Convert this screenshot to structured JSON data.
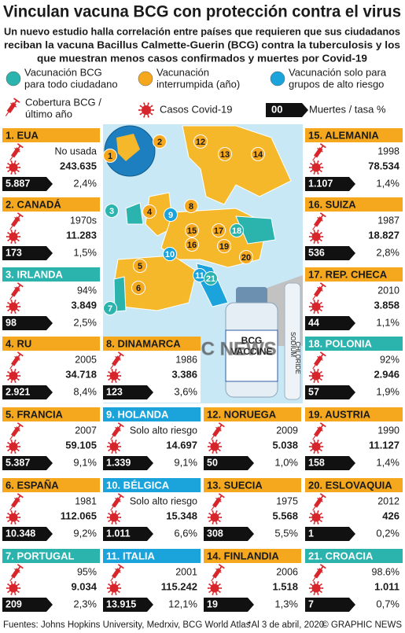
{
  "header": {
    "title": "Vinculan vacuna BCG con protección contra el virus",
    "subtitle": [
      "Un nuevo estudio halla correlación entre países que requieren que sus ciudadanos",
      "reciban la vacuna Bacillus Calmette-Guerin (BCG) contra la tuberculosis y los",
      "que muestran menos casos confirmados y muertes por Covid-19"
    ]
  },
  "legend": {
    "groups": [
      {
        "text": [
          "Vacunación BCG",
          "para todo ciudadano"
        ],
        "color": "#2bb3ad"
      },
      {
        "text": [
          "Vacunación",
          "interrumpida (año)"
        ],
        "color": "#f5a81e"
      },
      {
        "text": [
          "Vacunación solo para",
          "grupos de alto riesgo"
        ],
        "color": "#1ba3dc"
      }
    ],
    "coverage": [
      "Cobertura BCG /",
      "último año"
    ],
    "cases": "Casos Covid-19",
    "deaths_box": "00",
    "deaths": "Muertes / tasa %"
  },
  "countries": [
    {
      "name": "1. EUA",
      "group": 1,
      "coverage": "No usada",
      "cases": "243.635",
      "deaths": "5.887",
      "rate": "2,4%"
    },
    {
      "name": "2. CANADÁ",
      "group": 1,
      "coverage": "1970s",
      "cases": "11.283",
      "deaths": "173",
      "rate": "1,5%"
    },
    {
      "name": "3. IRLANDA",
      "group": 0,
      "coverage": "94%",
      "cases": "3.849",
      "deaths": "98",
      "rate": "2,5%"
    },
    {
      "name": "4. RU",
      "group": 1,
      "coverage": "2005",
      "cases": "34.718",
      "deaths": "2.921",
      "rate": "8,4%"
    },
    {
      "name": "5. FRANCIA",
      "group": 1,
      "coverage": "2007",
      "cases": "59.105",
      "deaths": "5.387",
      "rate": "9,1%"
    },
    {
      "name": "6. ESPAÑA",
      "group": 1,
      "coverage": "1981",
      "cases": "112.065",
      "deaths": "10.348",
      "rate": "9,2%"
    },
    {
      "name": "7. PORTUGAL",
      "group": 0,
      "coverage": "95%",
      "cases": "9.034",
      "deaths": "209",
      "rate": "2,3%"
    },
    {
      "name": "8. DINAMARCA",
      "group": 1,
      "coverage": "1986",
      "cases": "3.386",
      "deaths": "123",
      "rate": "3,6%"
    },
    {
      "name": "9. HOLANDA",
      "group": 2,
      "coverage": "Solo alto riesgo",
      "cases": "14.697",
      "deaths": "1.339",
      "rate": "9,1%"
    },
    {
      "name": "10. BÉLGICA",
      "group": 2,
      "coverage": "Solo alto riesgo",
      "cases": "15.348",
      "deaths": "1.011",
      "rate": "6,6%"
    },
    {
      "name": "11. ITALIA",
      "group": 2,
      "coverage": "2001",
      "cases": "115.242",
      "deaths": "13.915",
      "rate": "12,1%"
    },
    {
      "name": "12. NORUEGA",
      "group": 1,
      "coverage": "2009",
      "cases": "5.038",
      "deaths": "50",
      "rate": "1,0%"
    },
    {
      "name": "13. SUECIA",
      "group": 1,
      "coverage": "1975",
      "cases": "5.568",
      "deaths": "308",
      "rate": "5,5%"
    },
    {
      "name": "14. FINLANDIA",
      "group": 1,
      "coverage": "2006",
      "cases": "1.518",
      "deaths": "19",
      "rate": "1,3%"
    },
    {
      "name": "15. ALEMANIA",
      "group": 1,
      "coverage": "1998",
      "cases": "78.534",
      "deaths": "1.107",
      "rate": "1,4%"
    },
    {
      "name": "16. SUIZA",
      "group": 1,
      "coverage": "1987",
      "cases": "18.827",
      "deaths": "536",
      "rate": "2,8%"
    },
    {
      "name": "17. REP. CHECA",
      "group": 1,
      "coverage": "2010",
      "cases": "3.858",
      "deaths": "44",
      "rate": "1,1%"
    },
    {
      "name": "18. POLONIA",
      "group": 0,
      "coverage": "92%",
      "cases": "2.946",
      "deaths": "57",
      "rate": "1,9%"
    },
    {
      "name": "19. AUSTRIA",
      "group": 1,
      "coverage": "1990",
      "cases": "11.127",
      "deaths": "158",
      "rate": "1,4%"
    },
    {
      "name": "20. ESLOVAQUIA",
      "group": 1,
      "coverage": "2012",
      "cases": "426",
      "deaths": "1",
      "rate": "0,2%"
    },
    {
      "name": "21. CROACIA",
      "group": 0,
      "coverage": "98.6%",
      "cases": "1.011",
      "deaths": "7",
      "rate": "0,7%"
    }
  ],
  "map": {
    "markers": [
      {
        "label": "1",
        "group": 1
      },
      {
        "label": "2",
        "group": 1
      },
      {
        "label": "3",
        "group": 0
      },
      {
        "label": "4",
        "group": 1
      },
      {
        "label": "5",
        "group": 1
      },
      {
        "label": "6",
        "group": 1
      },
      {
        "label": "7",
        "group": 0
      },
      {
        "label": "8",
        "group": 1
      },
      {
        "label": "9",
        "group": 2
      },
      {
        "label": "10",
        "group": 2
      },
      {
        "label": "11",
        "group": 2
      },
      {
        "label": "12",
        "group": 1
      },
      {
        "label": "13",
        "group": 1
      },
      {
        "label": "14",
        "group": 1
      },
      {
        "label": "15",
        "group": 1
      },
      {
        "label": "16",
        "group": 1
      },
      {
        "label": "17",
        "group": 1
      },
      {
        "label": "18",
        "group": 0
      },
      {
        "label": "19",
        "group": 1
      },
      {
        "label": "20",
        "group": 1
      },
      {
        "label": "21",
        "group": 0
      }
    ],
    "bottle_label": [
      "BCG",
      "VACCINE"
    ],
    "ampoule_label": [
      "SODIUM",
      "CHLORIDE"
    ],
    "watermark": "GRAPHIC NEWS"
  },
  "footer": {
    "sources": "Fuentes: Johns Hopkins University, Medrxiv, BCG World Atlas",
    "note": "*Al 3 de abril, 2020",
    "credit": "© GRAPHIC NEWS"
  }
}
